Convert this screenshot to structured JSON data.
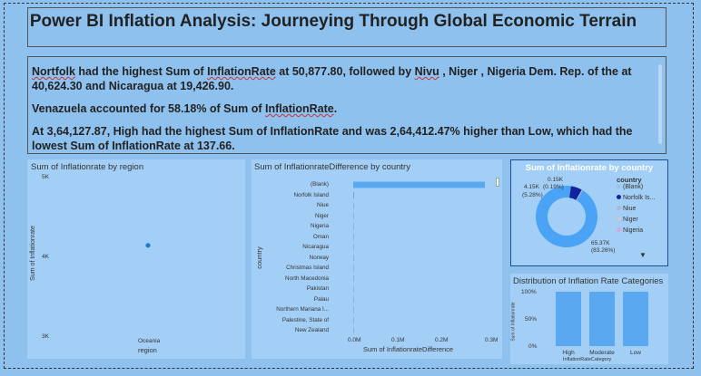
{
  "title": "Power BI Inflation Analysis: Journeying Through Global Economic Terrain",
  "insights": {
    "line1_lead": "Nortfolk",
    "line1_a": " had the highest Sum of ",
    "line1_term": "InflationRate",
    "line1_b": " at 50,877.80, followed by ",
    "line1_term2": "Nivu",
    "line1_c": " , Niger , Nigeria Dem. Rep. of the at 40,624.30 and Nicaragua at 19,426.90.",
    "line2_a": "Venazuela accounted for 58.18% of Sum of ",
    "line2_term": "InflationRate",
    "line2_b": ".",
    "line3": "At 3,64,127.87, High had the highest Sum of InflationRate and was 2,64,412.47% higher than Low, which had the lowest Sum of InflationRate at 137.66."
  },
  "region_chart": {
    "title": "Sum of Inflationrate by region",
    "ylabel": "Sum of Inflationrate",
    "xlabel": "region",
    "ticks": [
      "5K",
      "4K",
      "3K"
    ],
    "category": "Oceania",
    "point_color": "#1f78d1"
  },
  "country_chart": {
    "title": "Sum of InflationrateDifference by country",
    "ylabel": "country",
    "xlabel": "Sum of InflationrateDifference",
    "x_ticks": [
      "0.0M",
      "0.1M",
      "0.2M",
      "0.3M"
    ],
    "bar_color": "#5aa8f0"
  },
  "donut": {
    "title": "Sum of Inflationrate by country",
    "legend_title": "country",
    "legend": [
      {
        "label": "(Blank)",
        "color": "#9cc3e6"
      },
      {
        "label": "Norfolk Is...",
        "color": "#12239e"
      },
      {
        "label": "Niue",
        "color": "#b0b8c8"
      },
      {
        "label": "Niger",
        "color": "#c9c9d6"
      },
      {
        "label": "Nigeria",
        "color": "#d7a9d7"
      }
    ],
    "label_top": "0.15K",
    "label_top2": "(0.19%)",
    "label_left": "4.15K",
    "label_left2": "(5.28%)",
    "label_right": "65.37K",
    "label_right2": "(83.26%)"
  },
  "dist_chart": {
    "title": "Distribution of Inflation Rate Categories",
    "ylabel": "Sum of Inflationrate",
    "xlabel": "InflationRateCategory",
    "y_ticks": [
      "100%",
      "50%",
      "0%"
    ],
    "bar_color": "#5aa8f0"
  },
  "chart_data": [
    {
      "type": "scatter",
      "title": "Sum of Inflationrate by region",
      "xlabel": "region",
      "ylabel": "Sum of Inflationrate",
      "categories": [
        "Oceania"
      ],
      "values": [
        4150
      ],
      "ylim": [
        3000,
        5000
      ]
    },
    {
      "type": "bar",
      "orientation": "horizontal",
      "title": "Sum of InflationrateDifference by country",
      "xlabel": "Sum of InflationrateDifference",
      "ylabel": "country",
      "categories": [
        "(Blank)",
        "Norfolk Island",
        "Niue",
        "Niger",
        "Nigeria",
        "Oman",
        "Nicaragua",
        "Norway",
        "Christmas Island",
        "North Macedonia",
        "Pakistan",
        "Palau",
        "Northern Mariana I...",
        "Palestine, State of",
        "New Zealand"
      ],
      "values": [
        290000,
        2000,
        400,
        300,
        300,
        200,
        200,
        150,
        150,
        150,
        100,
        100,
        100,
        100,
        100
      ],
      "xlim": [
        0,
        300000
      ]
    },
    {
      "type": "pie",
      "title": "Sum of Inflationrate by country",
      "categories": [
        "(Blank)",
        "Norfolk Is...",
        "Niue",
        "Niger",
        "Nigeria"
      ],
      "values": [
        65370,
        4150,
        150,
        120,
        100
      ],
      "percent_labels": [
        "83.26%",
        "5.28%",
        "0.19%"
      ],
      "legend": "right"
    },
    {
      "type": "bar",
      "title": "Distribution of Inflation Rate Categories",
      "xlabel": "InflationRateCategory",
      "ylabel": "Sum of Inflationrate",
      "categories": [
        "High",
        "Moderate",
        "Low"
      ],
      "values": [
        100,
        100,
        100
      ],
      "ylim": [
        0,
        100
      ]
    }
  ]
}
